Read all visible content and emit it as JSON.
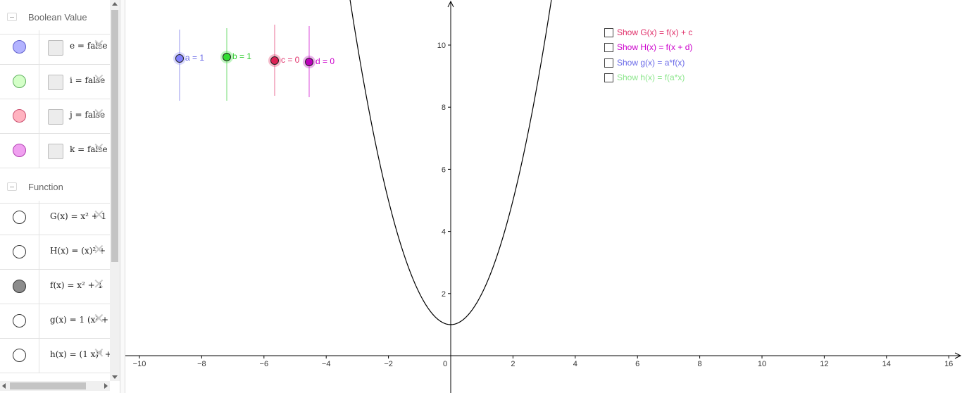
{
  "algebra": {
    "sections": [
      {
        "title": "Boolean Value",
        "rows": [
          {
            "marble_color": "#b3b3ff",
            "marble_border": "#6060cc",
            "text": "e = false"
          },
          {
            "marble_color": "#d4ffc8",
            "marble_border": "#60b060",
            "text": "i = false"
          },
          {
            "marble_color": "#ffb3c0",
            "marble_border": "#cc5070",
            "text": "j = false"
          },
          {
            "marble_color": "#f0a0f0",
            "marble_border": "#b040b0",
            "text": "k = false"
          }
        ]
      },
      {
        "title": "Function",
        "rows": [
          {
            "marble_color": "#ffffff",
            "marble_border": "#333333",
            "name": "G",
            "text": "G(x) = x² + 1"
          },
          {
            "marble_color": "#ffffff",
            "marble_border": "#333333",
            "name": "H",
            "text": "H(x) = (x)² +"
          },
          {
            "marble_color": "#8c8c8c",
            "marble_border": "#333333",
            "name": "f",
            "text": "f(x) = x² + 1"
          },
          {
            "marble_color": "#ffffff",
            "marble_border": "#333333",
            "name": "g",
            "text": "g(x) = 1 (x² +"
          },
          {
            "marble_color": "#ffffff",
            "marble_border": "#333333",
            "name": "h",
            "text": "h(x) = (1 x)² +"
          }
        ]
      }
    ]
  },
  "sliders": [
    {
      "label": "a = 1",
      "color": "#6a6ae8",
      "fill": "#8080ff"
    },
    {
      "label": "b = 1",
      "color": "#33cc33",
      "fill": "#33dd33"
    },
    {
      "label": "c = 0",
      "color": "#e0306a",
      "fill": "#dd2255"
    },
    {
      "label": "d = 0",
      "color": "#cc00cc",
      "fill": "#bb00bb"
    }
  ],
  "checkboxes": [
    {
      "label": "Show G(x) = f(x) + c",
      "color": "#e0306a"
    },
    {
      "label": "Show H(x) = f(x + d)",
      "color": "#cc00cc"
    },
    {
      "label": "Show g(x) = a*f(x)",
      "color": "#6a6ae8"
    },
    {
      "label": "Show h(x) = f(a*x)",
      "color": "#8ce68c"
    }
  ],
  "chart_data": {
    "type": "line",
    "series": [
      {
        "function": "x^2 + 1",
        "color": "#000000",
        "x": [
          -3.3,
          -3,
          -2,
          -1,
          0,
          1,
          2,
          3,
          3.3
        ],
        "y": [
          11.89,
          10,
          5,
          2,
          1,
          2,
          5,
          10,
          11.89
        ]
      }
    ],
    "xlim": [
      -10.5,
      16.5
    ],
    "ylim": [
      -1,
      11.4
    ],
    "x_ticks": [
      -10,
      -8,
      -6,
      -4,
      -2,
      0,
      2,
      4,
      6,
      8,
      10,
      12,
      14,
      16
    ],
    "x_tick_labels": [
      "−10",
      "−8",
      "−6",
      "−4",
      "−2",
      "0",
      "2",
      "4",
      "6",
      "8",
      "10",
      "12",
      "14",
      "16"
    ],
    "y_ticks": [
      2,
      4,
      6,
      8,
      10
    ],
    "y_tick_labels": [
      "2",
      "4",
      "6",
      "8",
      "10"
    ],
    "grid": false
  }
}
